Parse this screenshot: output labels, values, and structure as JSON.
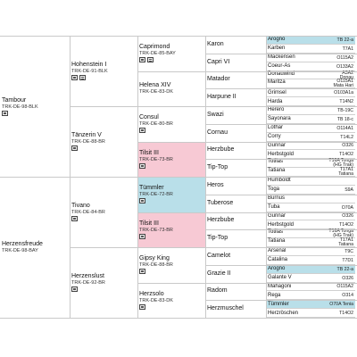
{
  "gen1": [
    {
      "name": "Tambour",
      "reg": "TRK-DE-98-BLK",
      "icons": [
        "photo"
      ]
    },
    {
      "name": "Herzensfreude",
      "reg": "TRK-DE-98-BAY",
      "icons": []
    }
  ],
  "gen2": [
    {
      "name": "Hohenstein I",
      "reg": "TRK-DE-91-BLK",
      "icons": [
        "photo",
        "doc"
      ]
    },
    {
      "name": "Tänzerin V",
      "reg": "TRK-DE-88-BR",
      "icons": [
        "photo"
      ]
    },
    {
      "name": "Tivano",
      "reg": "TRK-DE-84-BR",
      "icons": [
        "photo"
      ]
    },
    {
      "name": "Herzenslust",
      "reg": "TRK-DE-92-BR",
      "icons": [
        "photo"
      ]
    }
  ],
  "gen3": [
    {
      "name": "Caprimond",
      "reg": "TRK-DE-85-BAY",
      "icons": [
        "photo",
        "doc"
      ]
    },
    {
      "name": "Helena XIV",
      "reg": "TRK-DE-83-DK",
      "icons": []
    },
    {
      "name": "Consul",
      "reg": "TRK-DE-80-BR",
      "icons": [
        "photo"
      ]
    },
    {
      "name": "Tilsit III",
      "reg": "TRK-DE-73-BR",
      "icons": [
        "photo"
      ]
    },
    {
      "name": "Tümmler",
      "reg": "TRK-DE-72-BR",
      "icons": [
        "photo"
      ]
    },
    {
      "name": "Tilsit III",
      "reg": "TRK-DE-73-BR",
      "icons": [
        "photo"
      ]
    },
    {
      "name": "Gipsy King",
      "reg": "TRK-DE-88-BR",
      "icons": [
        "photo"
      ]
    },
    {
      "name": "Herzsolo",
      "reg": "TRK-DE-83-DK",
      "icons": [
        "photo"
      ]
    }
  ],
  "gen4": [
    "Karon",
    "Capri VI",
    "Matador",
    "Harpune II",
    "Swazi",
    "Cornau",
    "Herzbube",
    "Tip-Top",
    "Heros",
    "Tuberose",
    "Herzbube",
    "Tip-Top",
    "Camelot",
    "Grazie II",
    "Radom",
    "Herzmuschel"
  ],
  "gen5": [
    {
      "a": "Arogno",
      "b": "TB 22-a",
      "hl": true
    },
    {
      "a": "Karben",
      "b": "T7A1"
    },
    {
      "a": "Mackensen",
      "b": "O115A2"
    },
    {
      "a": "Coeur-As",
      "b": "O133A2"
    },
    {
      "a": "Donauwind",
      "b": "A3A2",
      "b2": "Donau"
    },
    {
      "a": "Maritza",
      "b": "O115A1",
      "b2": "Mata Hari"
    },
    {
      "a": "Grimsel",
      "b": "O103A1a"
    },
    {
      "a": "Harda",
      "b": "T14N2"
    },
    {
      "a": "Herero",
      "b": "TB-19C"
    },
    {
      "a": "Sayonara",
      "b": "TB 18-c"
    },
    {
      "a": "Lothar",
      "b": "O114A1"
    },
    {
      "a": "Corry",
      "b": "T14L2"
    },
    {
      "a": "Gunnar",
      "b": "O326"
    },
    {
      "a": "Herbstgold",
      "b": "T14O2"
    },
    {
      "a": "Totilas",
      "b": "T16A Tonga",
      "b2": "(HG Trak)"
    },
    {
      "a": "Tatiana",
      "b": "T17A1",
      "b2": "Tatiana"
    },
    {
      "a": "Humboldt",
      "b": ""
    },
    {
      "a": "Toga",
      "b": "S9A"
    },
    {
      "a": "Burnus",
      "b": ""
    },
    {
      "a": "Tuba",
      "b": "O70A"
    },
    {
      "a": "Gunnar",
      "b": "O326"
    },
    {
      "a": "Herbstgold",
      "b": "T14O2"
    },
    {
      "a": "Totilas",
      "b": "T16A Tonga",
      "b2": "(HG Trak)"
    },
    {
      "a": "Tatiana",
      "b": "T17A1",
      "b2": "Tatiana"
    },
    {
      "a": "Arsenal",
      "b": "T9C"
    },
    {
      "a": "Catalina",
      "b": "T7D1"
    },
    {
      "a": "Arogno",
      "b": "TB 22-a",
      "hl": true
    },
    {
      "a": "Galante V",
      "b": "O326"
    },
    {
      "a": "Mahagoni",
      "b": "O115A2"
    },
    {
      "a": "Rega",
      "b": "O314"
    },
    {
      "a": "Tümmler",
      "b": "O70A Tenia",
      "hl": true
    },
    {
      "a": "Herzröschen",
      "b": "T14O2"
    }
  ]
}
